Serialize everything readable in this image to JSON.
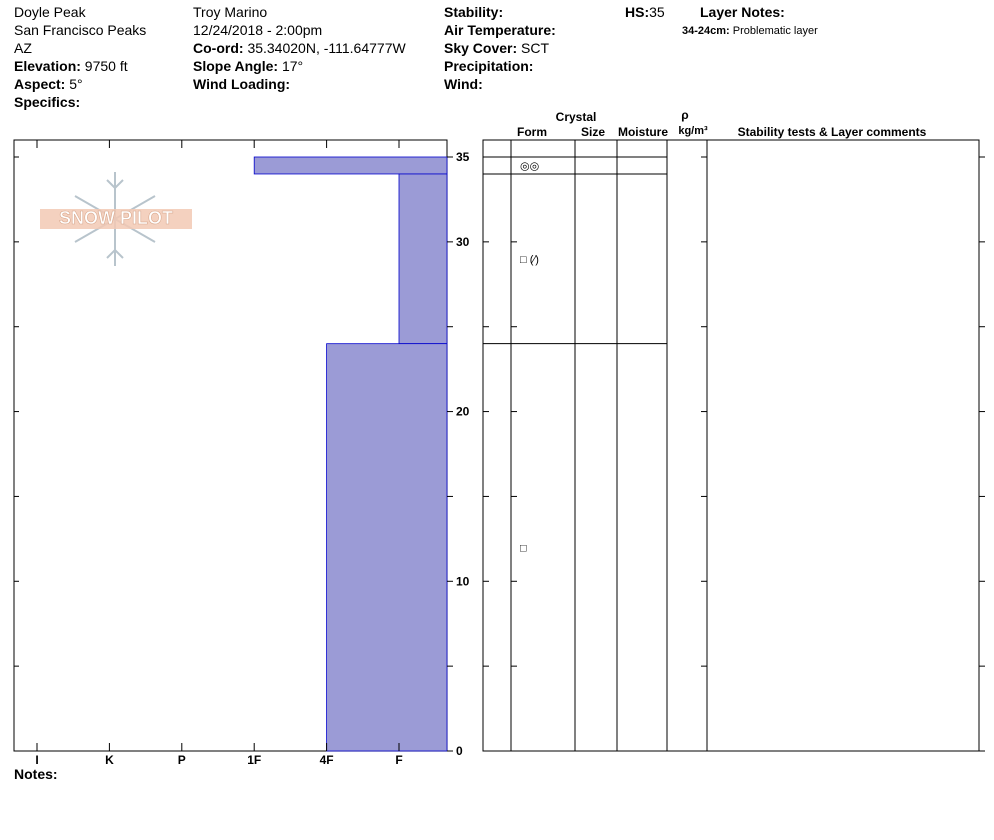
{
  "header": {
    "col1": {
      "lines": [
        "Doyle Peak",
        "San Francisco Peaks",
        "AZ"
      ],
      "fields": [
        {
          "label": "Elevation:",
          "value": "9750 ft"
        },
        {
          "label": "Aspect:",
          "value": "5°"
        },
        {
          "label": "Specifics:",
          "value": ""
        }
      ]
    },
    "col2": {
      "lines": [
        "Troy Marino",
        "12/24/2018 - 2:00pm"
      ],
      "fields": [
        {
          "label": "Co-ord:",
          "value": "35.34020N, -111.64777W"
        },
        {
          "label": "Slope Angle:",
          "value": "17°"
        },
        {
          "label": "Wind Loading:",
          "value": ""
        }
      ]
    },
    "col3": {
      "fields": [
        {
          "label": "Stability:",
          "value": ""
        },
        {
          "label": "Air Temperature:",
          "value": ""
        },
        {
          "label": "Sky Cover:",
          "value": "SCT"
        },
        {
          "label": "Precipitation:",
          "value": ""
        },
        {
          "label": "Wind:",
          "value": ""
        }
      ]
    },
    "hs": {
      "label": "HS:",
      "value": "35"
    },
    "layer_notes": {
      "title": "Layer Notes:",
      "notes": [
        {
          "label": "34-24cm:",
          "value": "Problematic layer"
        }
      ]
    }
  },
  "logo": "SNOW PILOT",
  "notes_label": "Notes:",
  "chart_data": {
    "type": "hardness-profile",
    "hardness_categories": [
      "I",
      "K",
      "P",
      "1F",
      "4F",
      "F"
    ],
    "ylim": [
      0,
      35
    ],
    "yticks": [
      0,
      10,
      20,
      30,
      35
    ],
    "minor_yticks": [
      5,
      15,
      25
    ],
    "color": "#9b9bd6",
    "layers": [
      {
        "top": 35,
        "bottom": 34,
        "hardness": "1F",
        "form": "◎◎"
      },
      {
        "top": 34,
        "bottom": 24,
        "hardness": "F",
        "form": "□ (⁄)"
      },
      {
        "top": 24,
        "bottom": 0,
        "hardness": "4F",
        "form": "□"
      }
    ],
    "table_headers": {
      "crystal": "Crystal",
      "form": "Form",
      "size": "Size",
      "moisture": "Moisture",
      "rho": "ρ",
      "density_unit": "kg/m³",
      "comments": "Stability tests & Layer comments"
    }
  }
}
